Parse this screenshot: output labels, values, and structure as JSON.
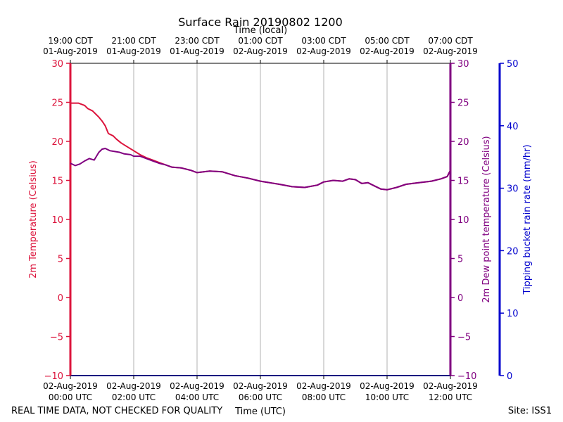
{
  "chart_data": {
    "type": "line",
    "title": "Surface Rain 20190802 1200",
    "top_axis_label": "Time (local)",
    "bottom_axis_label": "Time (UTC)",
    "footer_left": "REAL TIME DATA, NOT CHECKED FOR QUALITY",
    "footer_right": "Site: ISS1",
    "left_axis": {
      "label": "2m Temperature (Celsius)",
      "range": [
        -10,
        30
      ],
      "ticks": [
        "30",
        "25",
        "20",
        "15",
        "10",
        "5",
        "0",
        "−5",
        "−10"
      ],
      "color": "#dc143c"
    },
    "right_axis": {
      "label": "2m Dew point temperature (Celsius)",
      "range": [
        -10,
        30
      ],
      "ticks": [
        "30",
        "25",
        "20",
        "15",
        "10",
        "5",
        "0",
        "−5",
        "−10"
      ],
      "color": "#800080"
    },
    "rain_axis": {
      "label": "Tipping bucket rain rate (mm/hr)",
      "range": [
        0,
        50
      ],
      "ticks": [
        "50",
        "40",
        "30",
        "20",
        "10",
        "0"
      ],
      "color": "#0000cd"
    },
    "x_range_hours": [
      0,
      12
    ],
    "x_ticks": [
      {
        "hour": 0,
        "local_time": "19:00 CDT",
        "local_date": "01-Aug-2019",
        "utc_date": "02-Aug-2019",
        "utc_time": "00:00 UTC"
      },
      {
        "hour": 2,
        "local_time": "21:00 CDT",
        "local_date": "01-Aug-2019",
        "utc_date": "02-Aug-2019",
        "utc_time": "02:00 UTC"
      },
      {
        "hour": 4,
        "local_time": "23:00 CDT",
        "local_date": "01-Aug-2019",
        "utc_date": "02-Aug-2019",
        "utc_time": "04:00 UTC"
      },
      {
        "hour": 6,
        "local_time": "01:00 CDT",
        "local_date": "02-Aug-2019",
        "utc_date": "02-Aug-2019",
        "utc_time": "06:00 UTC"
      },
      {
        "hour": 8,
        "local_time": "03:00 CDT",
        "local_date": "02-Aug-2019",
        "utc_date": "02-Aug-2019",
        "utc_time": "08:00 UTC"
      },
      {
        "hour": 10,
        "local_time": "05:00 CDT",
        "local_date": "02-Aug-2019",
        "utc_date": "02-Aug-2019",
        "utc_time": "10:00 UTC"
      },
      {
        "hour": 12,
        "local_time": "07:00 CDT",
        "local_date": "02-Aug-2019",
        "utc_date": "02-Aug-2019",
        "utc_time": "12:00 UTC"
      }
    ],
    "grid": true,
    "series": [
      {
        "name": "2m Temperature",
        "color": "#dc143c",
        "x": [
          0,
          0.25,
          0.45,
          0.55,
          0.7,
          0.8,
          0.9,
          1.0,
          1.1,
          1.2,
          1.35,
          1.45,
          1.6,
          1.8,
          2.0,
          2.2,
          2.4,
          2.6,
          2.8,
          3.0,
          3.2,
          3.5,
          3.8,
          4.0,
          4.4,
          4.8,
          5.2,
          5.6,
          6.0,
          6.3,
          6.6,
          7.0,
          7.4,
          7.8,
          8.0,
          8.3,
          8.6,
          8.8,
          9.0,
          9.2,
          9.4,
          9.6,
          9.8,
          10.0,
          10.3,
          10.6,
          11.0,
          11.4,
          11.7,
          11.9,
          12.0
        ],
        "values": [
          24.9,
          24.9,
          24.6,
          24.2,
          23.9,
          23.5,
          23.1,
          22.6,
          22.0,
          21.0,
          20.7,
          20.3,
          19.8,
          19.3,
          18.8,
          18.3,
          17.9,
          17.6,
          17.3,
          17.0,
          16.7,
          16.6,
          16.3,
          16.0,
          16.2,
          16.1,
          15.6,
          15.3,
          14.9,
          14.7,
          14.5,
          14.2,
          14.1,
          14.4,
          14.8,
          15.0,
          14.9,
          15.2,
          15.1,
          14.6,
          14.7,
          14.3,
          13.9,
          13.8,
          14.1,
          14.5,
          14.7,
          14.9,
          15.2,
          15.5,
          16.3
        ]
      },
      {
        "name": "2m Dew point temperature",
        "color": "#800080",
        "x": [
          0,
          0.15,
          0.3,
          0.45,
          0.6,
          0.75,
          0.9,
          1.0,
          1.1,
          1.25,
          1.4,
          1.55,
          1.7,
          1.9,
          2.0,
          2.2,
          2.4,
          2.6,
          2.8,
          3.0,
          3.2,
          3.5,
          3.8,
          4.0,
          4.4,
          4.8,
          5.2,
          5.6,
          6.0,
          6.3,
          6.6,
          7.0,
          7.4,
          7.8,
          8.0,
          8.3,
          8.6,
          8.8,
          9.0,
          9.2,
          9.4,
          9.6,
          9.8,
          10.0,
          10.3,
          10.6,
          11.0,
          11.4,
          11.7,
          11.9,
          12.0
        ],
        "values": [
          17.2,
          16.9,
          17.1,
          17.5,
          17.8,
          17.6,
          18.6,
          19.0,
          19.1,
          18.8,
          18.7,
          18.6,
          18.4,
          18.3,
          18.1,
          18.1,
          17.8,
          17.5,
          17.2,
          17.0,
          16.7,
          16.6,
          16.3,
          16.0,
          16.2,
          16.1,
          15.6,
          15.3,
          14.9,
          14.7,
          14.5,
          14.2,
          14.1,
          14.4,
          14.8,
          15.0,
          14.9,
          15.2,
          15.1,
          14.6,
          14.7,
          14.3,
          13.9,
          13.8,
          14.1,
          14.5,
          14.7,
          14.9,
          15.2,
          15.5,
          16.3
        ]
      }
    ]
  }
}
